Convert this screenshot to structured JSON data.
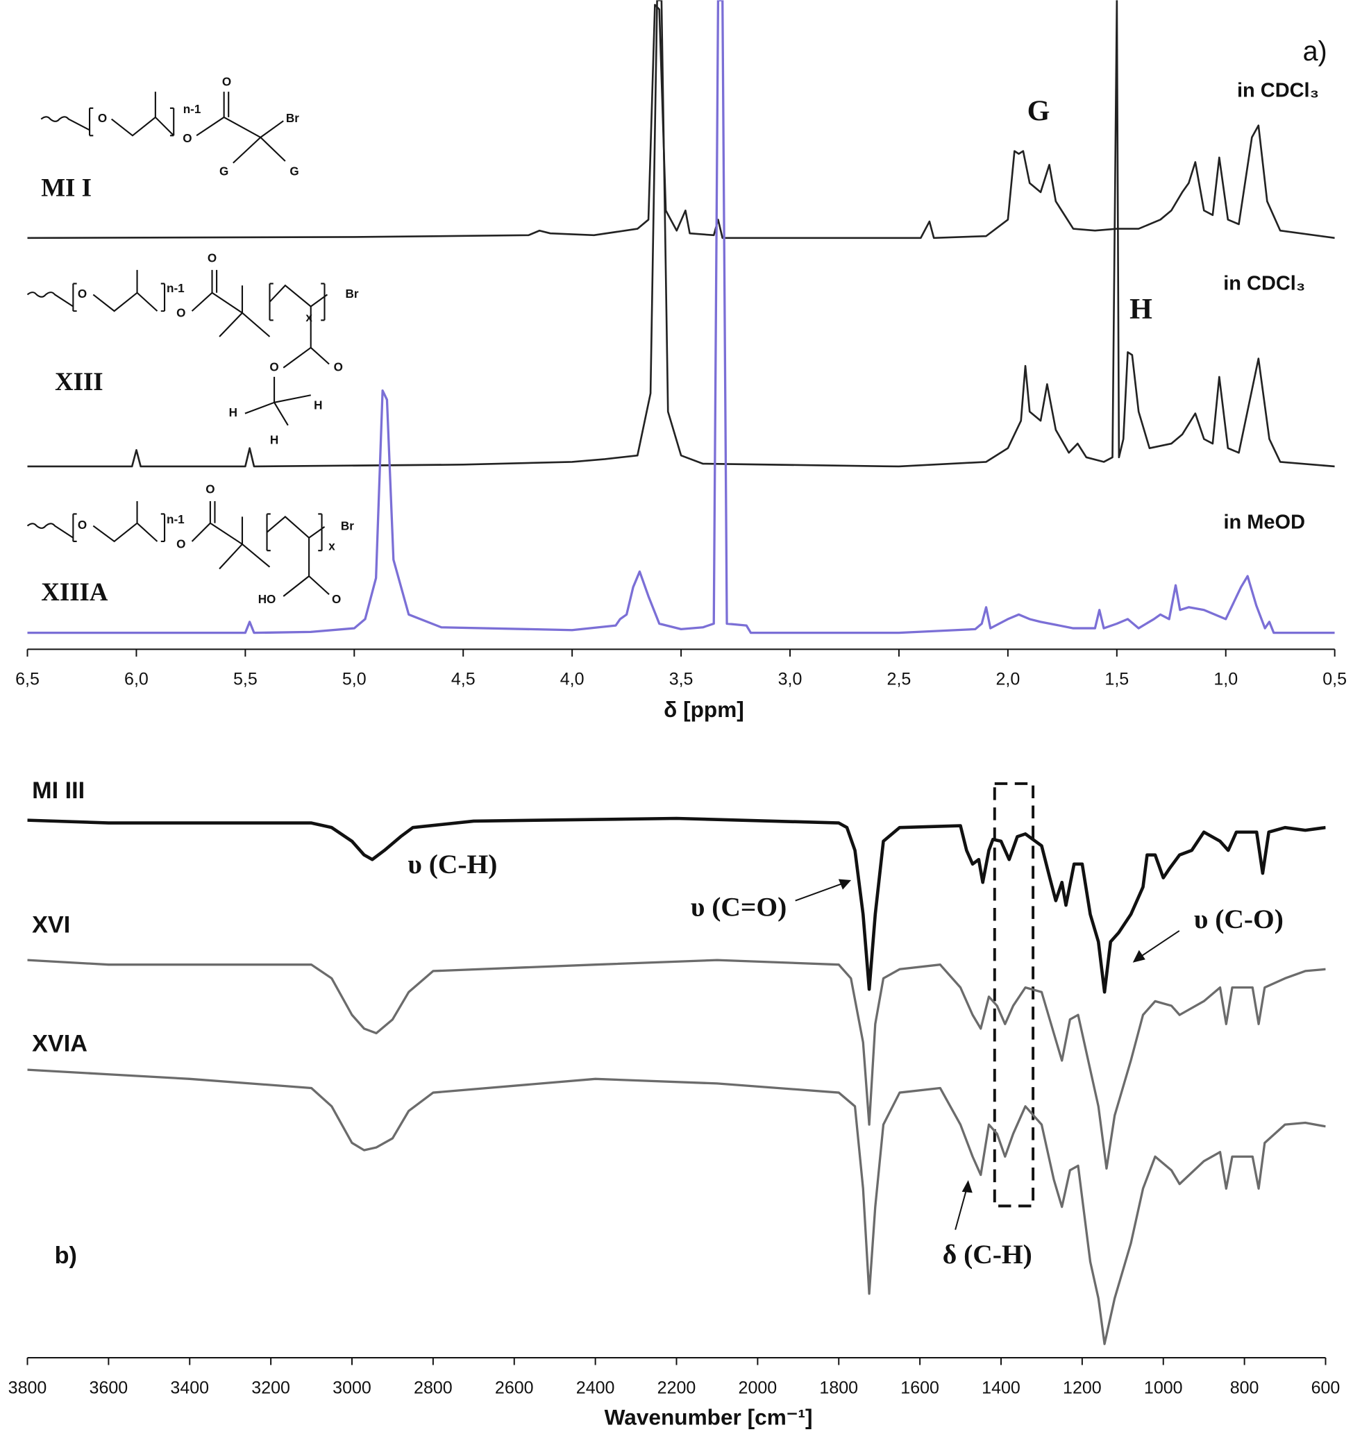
{
  "chart_data": [
    {
      "type": "line",
      "xlabel": "δ [ppm]",
      "xlim": [
        6.5,
        0.5
      ],
      "xticks": [
        {
          "value": 6.5,
          "label": "6,5"
        },
        {
          "value": 6.0,
          "label": "6,0"
        },
        {
          "value": 5.5,
          "label": "5,5"
        },
        {
          "value": 5.0,
          "label": "5,0"
        },
        {
          "value": 4.5,
          "label": "4,5"
        },
        {
          "value": 4.0,
          "label": "4,0"
        },
        {
          "value": 3.5,
          "label": "3,5"
        },
        {
          "value": 3.0,
          "label": "3,0"
        },
        {
          "value": 2.5,
          "label": "2,5"
        },
        {
          "value": 2.0,
          "label": "2,0"
        },
        {
          "value": 1.5,
          "label": "1,5"
        },
        {
          "value": 1.0,
          "label": "1,0"
        },
        {
          "value": 0.5,
          "label": "0,5"
        }
      ],
      "annotations": [
        "a)",
        "in CDCl₃",
        "G",
        "in CDCl₃",
        "H",
        "in MeOD"
      ],
      "structures": [
        {
          "labels": [
            "O",
            "n-1",
            "O",
            "O",
            "Br",
            "G",
            "G"
          ]
        },
        {
          "labels": [
            "O",
            "n-1",
            "O",
            "O",
            "x",
            "Br",
            "O",
            "O",
            "H",
            "H",
            "H"
          ]
        },
        {
          "labels": [
            "O",
            "n-1",
            "O",
            "O",
            "x",
            "Br",
            "O",
            "HO"
          ]
        }
      ],
      "series": [
        {
          "name": "MI I",
          "color": "#222222",
          "x": [
            6.5,
            5.0,
            4.2,
            4.15,
            4.1,
            3.9,
            3.7,
            3.65,
            3.62,
            3.6,
            3.57,
            3.52,
            3.48,
            3.46,
            3.35,
            3.33,
            3.31,
            2.4,
            2.36,
            2.34,
            2.1,
            2.0,
            1.97,
            1.95,
            1.93,
            1.9,
            1.85,
            1.81,
            1.78,
            1.7,
            1.6,
            1.5,
            1.4,
            1.3,
            1.25,
            1.2,
            1.17,
            1.14,
            1.1,
            1.06,
            1.03,
            0.99,
            0.94,
            0.88,
            0.85,
            0.81,
            0.75,
            0.5
          ],
          "values": [
            0,
            1,
            3,
            8,
            5,
            3,
            10,
            20,
            255,
            250,
            30,
            8,
            30,
            5,
            3,
            20,
            0,
            0,
            18,
            0,
            2,
            20,
            95,
            92,
            95,
            60,
            50,
            80,
            40,
            10,
            8,
            10,
            10,
            20,
            30,
            50,
            60,
            83,
            30,
            25,
            88,
            20,
            15,
            110,
            123,
            40,
            8,
            0
          ]
        },
        {
          "name": "XIII",
          "color": "#222222",
          "x": [
            6.5,
            6.02,
            6.0,
            5.98,
            5.5,
            5.48,
            5.46,
            4.5,
            4.0,
            3.85,
            3.7,
            3.64,
            3.61,
            3.59,
            3.56,
            3.5,
            3.4,
            2.5,
            2.1,
            2.0,
            1.94,
            1.92,
            1.9,
            1.85,
            1.82,
            1.78,
            1.72,
            1.68,
            1.64,
            1.56,
            1.52,
            1.5,
            1.49,
            1.47,
            1.45,
            1.43,
            1.4,
            1.35,
            1.25,
            1.2,
            1.14,
            1.1,
            1.06,
            1.03,
            0.99,
            0.94,
            0.85,
            0.8,
            0.75,
            0.5
          ],
          "values": [
            0,
            0,
            18,
            0,
            0,
            20,
            0,
            2,
            5,
            8,
            12,
            80,
            510,
            510,
            60,
            12,
            3,
            0,
            5,
            20,
            50,
            110,
            60,
            50,
            90,
            40,
            15,
            25,
            10,
            5,
            10,
            510,
            10,
            30,
            125,
            122,
            60,
            20,
            25,
            35,
            58,
            30,
            25,
            98,
            20,
            15,
            118,
            30,
            5,
            0
          ]
        },
        {
          "name": "XIIIA",
          "color": "#7b6fd6",
          "x": [
            6.5,
            5.5,
            5.48,
            5.46,
            5.2,
            5.0,
            4.95,
            4.9,
            4.87,
            4.85,
            4.82,
            4.75,
            4.6,
            4.0,
            3.8,
            3.78,
            3.75,
            3.72,
            3.69,
            3.65,
            3.6,
            3.5,
            3.4,
            3.35,
            3.33,
            3.31,
            3.29,
            3.2,
            3.18,
            2.5,
            2.15,
            2.12,
            2.1,
            2.08,
            2.0,
            1.95,
            1.9,
            1.85,
            1.7,
            1.6,
            1.58,
            1.56,
            1.5,
            1.45,
            1.4,
            1.33,
            1.3,
            1.26,
            1.23,
            1.21,
            1.17,
            1.1,
            1.0,
            0.93,
            0.9,
            0.86,
            0.82,
            0.8,
            0.78,
            0.5
          ],
          "values": [
            0,
            0,
            12,
            0,
            1,
            5,
            15,
            60,
            265,
            255,
            80,
            20,
            6,
            3,
            8,
            15,
            20,
            50,
            67,
            40,
            10,
            4,
            6,
            10,
            692,
            692,
            10,
            8,
            0,
            0,
            4,
            10,
            28,
            5,
            15,
            20,
            15,
            12,
            5,
            5,
            25,
            5,
            10,
            15,
            5,
            15,
            20,
            15,
            52,
            25,
            28,
            25,
            15,
            50,
            62,
            30,
            5,
            12,
            0,
            0
          ]
        }
      ]
    },
    {
      "type": "line",
      "xlabel": "Wavenumber [cm⁻¹]",
      "xlim": [
        3800,
        600
      ],
      "xticks": [
        3800,
        3600,
        3400,
        3200,
        3000,
        2800,
        2600,
        2400,
        2200,
        2000,
        1800,
        1600,
        1400,
        1200,
        1000,
        800,
        600
      ],
      "annotations": [
        "υ (C-H)",
        "υ (C=O)",
        "υ (C-O)",
        "δ (C-H)",
        "b)"
      ],
      "series": [
        {
          "name": "MI III",
          "color": "#111111",
          "x": [
            3800,
            3600,
            3300,
            3100,
            3050,
            3000,
            2970,
            2950,
            2920,
            2880,
            2850,
            2700,
            2200,
            1800,
            1780,
            1760,
            1740,
            1725,
            1710,
            1690,
            1650,
            1500,
            1485,
            1470,
            1455,
            1445,
            1430,
            1420,
            1400,
            1380,
            1360,
            1340,
            1300,
            1280,
            1265,
            1250,
            1240,
            1220,
            1200,
            1180,
            1160,
            1145,
            1130,
            1110,
            1080,
            1050,
            1040,
            1020,
            1000,
            985,
            960,
            930,
            900,
            860,
            840,
            820,
            770,
            755,
            740,
            700,
            650,
            600
          ],
          "values": [
            203,
            200,
            200,
            200,
            195,
            180,
            165,
            160,
            170,
            185,
            195,
            202,
            205,
            200,
            195,
            170,
            100,
            18,
            100,
            180,
            195,
            197,
            170,
            155,
            160,
            135,
            170,
            182,
            180,
            160,
            185,
            188,
            175,
            140,
            115,
            135,
            110,
            155,
            155,
            100,
            70,
            15,
            70,
            80,
            100,
            130,
            165,
            165,
            140,
            150,
            165,
            170,
            190,
            180,
            170,
            190,
            190,
            145,
            190,
            195,
            192,
            195
          ]
        },
        {
          "name": "XVI",
          "color": "#6b6b6b",
          "x": [
            3800,
            3600,
            3400,
            3100,
            3050,
            3000,
            2970,
            2940,
            2900,
            2860,
            2800,
            2400,
            2100,
            1800,
            1770,
            1740,
            1725,
            1710,
            1690,
            1650,
            1550,
            1500,
            1470,
            1450,
            1430,
            1410,
            1390,
            1370,
            1340,
            1300,
            1270,
            1250,
            1230,
            1210,
            1180,
            1160,
            1140,
            1120,
            1080,
            1050,
            1020,
            980,
            960,
            900,
            860,
            845,
            830,
            780,
            765,
            750,
            700,
            650,
            600
          ],
          "values": [
            240,
            235,
            235,
            235,
            220,
            180,
            165,
            160,
            175,
            205,
            228,
            235,
            240,
            235,
            220,
            150,
            60,
            170,
            220,
            230,
            235,
            210,
            180,
            165,
            200,
            190,
            170,
            190,
            210,
            205,
            160,
            130,
            175,
            180,
            120,
            80,
            12,
            70,
            130,
            180,
            195,
            190,
            180,
            195,
            210,
            170,
            210,
            210,
            170,
            210,
            220,
            228,
            230
          ]
        },
        {
          "name": "XVIA",
          "color": "#6b6b6b",
          "x": [
            3800,
            3600,
            3400,
            3100,
            3050,
            3000,
            2970,
            2940,
            2900,
            2860,
            2800,
            2400,
            2100,
            1800,
            1760,
            1740,
            1725,
            1710,
            1690,
            1650,
            1550,
            1500,
            1470,
            1450,
            1430,
            1410,
            1390,
            1370,
            1340,
            1300,
            1270,
            1250,
            1230,
            1210,
            1180,
            1160,
            1145,
            1120,
            1080,
            1050,
            1020,
            980,
            960,
            900,
            860,
            845,
            830,
            780,
            765,
            750,
            700,
            650,
            600
          ],
          "values": [
            310,
            305,
            300,
            290,
            270,
            230,
            222,
            225,
            235,
            265,
            285,
            300,
            295,
            285,
            270,
            180,
            65,
            160,
            250,
            285,
            290,
            250,
            215,
            195,
            250,
            240,
            215,
            240,
            270,
            250,
            190,
            160,
            200,
            205,
            100,
            60,
            10,
            60,
            120,
            180,
            215,
            200,
            185,
            210,
            220,
            180,
            215,
            215,
            180,
            230,
            250,
            252,
            248
          ]
        }
      ]
    }
  ]
}
